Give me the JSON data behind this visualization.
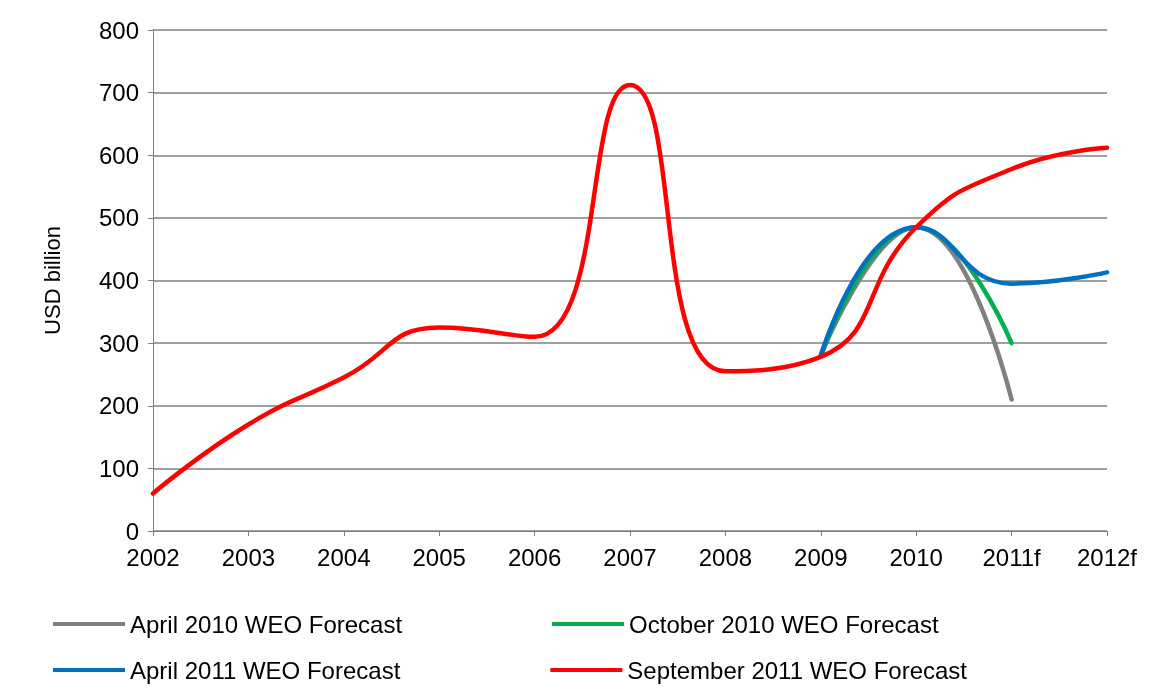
{
  "chart_data": {
    "type": "line",
    "ylabel": "USD billion",
    "categories": [
      "2002",
      "2003",
      "2004",
      "2005",
      "2006",
      "2007",
      "2008",
      "2009",
      "2010",
      "2011f",
      "2012f"
    ],
    "series": [
      {
        "name": "April 2010 WEO Forecast",
        "color": "#808080",
        "values": [
          null,
          null,
          null,
          null,
          null,
          null,
          null,
          280,
          485,
          210,
          null
        ]
      },
      {
        "name": "October 2010 WEO Forecast",
        "color": "#00b050",
        "values": [
          null,
          null,
          null,
          null,
          null,
          null,
          null,
          280,
          485,
          300,
          null
        ]
      },
      {
        "name": "April 2011 WEO Forecast",
        "color": "#0070c0",
        "values": [
          null,
          null,
          null,
          null,
          null,
          null,
          null,
          280,
          485,
          395,
          413
        ]
      },
      {
        "name": "September 2011 WEO Forecast",
        "color": "#ff0000",
        "values": [
          60,
          170,
          245,
          325,
          310,
          712,
          255,
          278,
          485,
          578,
          612
        ]
      }
    ],
    "ylim": [
      0,
      800
    ],
    "yticks": [
      0,
      100,
      200,
      300,
      400,
      500,
      600,
      700,
      800
    ],
    "grid": "y",
    "legend": "bottom",
    "marker": "none",
    "line_style": "solid"
  }
}
